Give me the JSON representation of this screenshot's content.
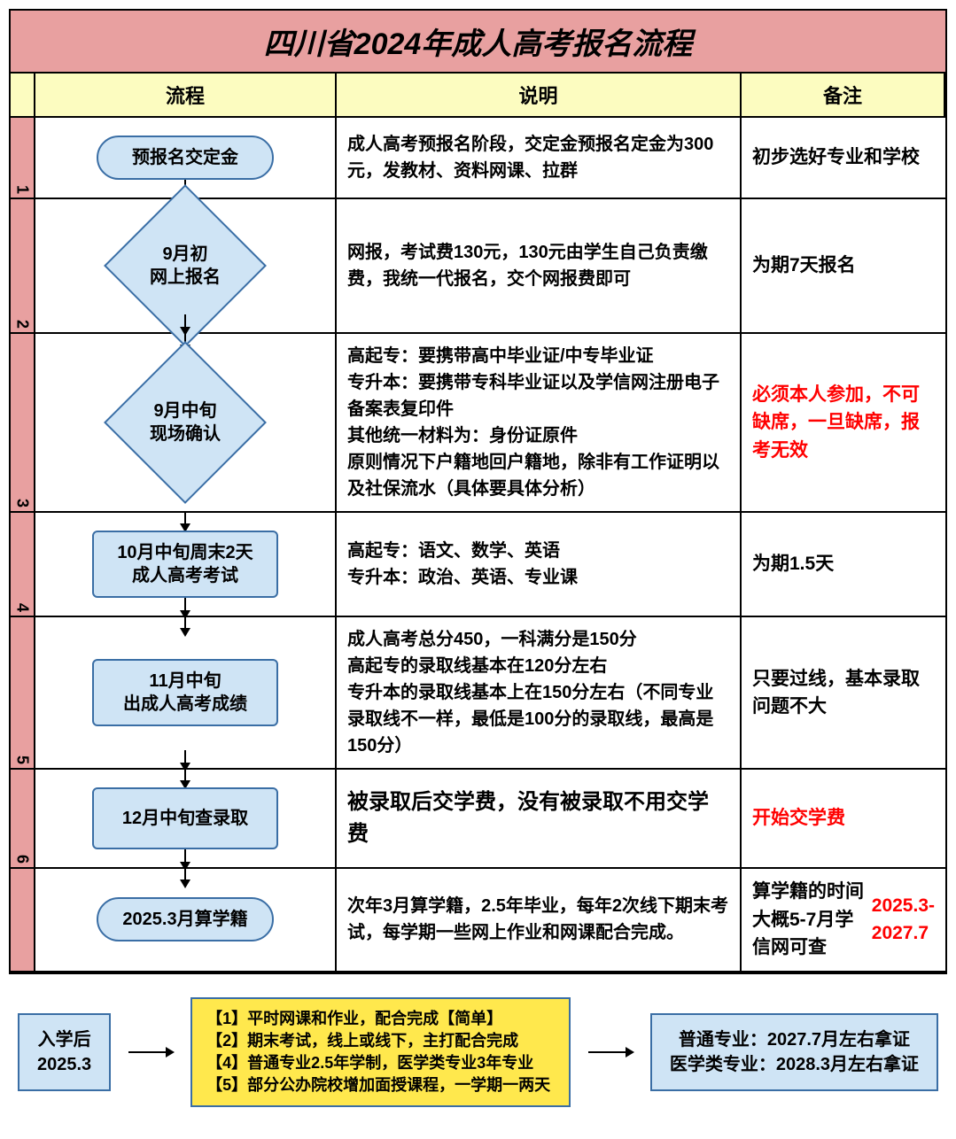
{
  "title": "四川省2024年成人高考报名流程",
  "headers": {
    "flow": "流程",
    "desc": "说明",
    "note": "备注"
  },
  "rows": [
    {
      "num": "1",
      "shape": "rounded",
      "shape_text": "预报名交定金",
      "desc": "成人高考预报名阶段，交定金预报名定金为300元，发教材、资料网课、拉群",
      "note": "初步选好专业和学校",
      "arrows": "bot"
    },
    {
      "num": "2",
      "shape": "diamond",
      "shape_text": "9月初\n网上报名",
      "desc": "网报，考试费130元，130元由学生自己负责缴费，我统一代报名，交个网报费即可",
      "note": "为期7天报名",
      "arrows": "both"
    },
    {
      "num": "3",
      "shape": "diamond",
      "shape_text": "9月中旬\n现场确认",
      "desc": "高起专：要携带高中毕业证/中专毕业证\n专升本：要携带专科毕业证以及学信网注册电子备案表复印件\n其他统一材料为：身份证原件\n原则情况下户籍地回户籍地，除非有工作证明以及社保流水（具体要具体分析）",
      "note": "必须本人参加，不可缺席，一旦缺席，报考无效",
      "note_red": true,
      "arrows": "top"
    },
    {
      "num": "4",
      "shape": "rect",
      "shape_text": "10月中旬周末2天\n成人高考考试",
      "desc": "高起专：语文、数学、英语\n专升本：政治、英语、专业课",
      "note": "为期1.5天",
      "arrows": "both"
    },
    {
      "num": "5",
      "shape": "rect",
      "shape_text": "11月中旬\n出成人高考成绩",
      "desc": "成人高考总分450，一科满分是150分\n高起专的录取线基本在120分左右\n专升本的录取线基本上在150分左右（不同专业录取线不一样，最低是100分的录取线，最高是150分）",
      "note": "只要过线，基本录取问题不大",
      "arrows": "both"
    },
    {
      "num": "6",
      "shape": "rect",
      "shape_text": "12月中旬查录取",
      "desc": "被录取后交学费，没有被录取不用交学费",
      "desc_big": true,
      "note": "开始交学费",
      "note_red": true,
      "arrows": "both"
    },
    {
      "num": "",
      "shape": "rounded",
      "shape_text": "2025.3月算学籍",
      "desc": "次年3月算学籍，2.5年毕业，每年2次线下期末考试，每学期一些网上作业和网课配合完成。",
      "note_html": "算学籍的时间大概5-7月学信网可查<br><span class='red'>2025.3-2027.7</span>",
      "arrows": "top"
    }
  ],
  "bottom": {
    "left": "入学后\n2025.3",
    "mid": "【1】平时网课和作业，配合完成【简单】\n【2】期末考试，线上或线下，主打配合完成\n【4】普通专业2.5年学制，医学类专业3年专业\n【5】部分公办院校增加面授课程，一学期一两天",
    "right": "普通专业：2027.7月左右拿证\n医学类专业：2028.3月左右拿证"
  },
  "colors": {
    "title_bg": "#e8a0a0",
    "header_bg": "#fcfcc0",
    "shape_fill": "#cfe4f5",
    "shape_border": "#3a6ea5",
    "yellow": "#ffe84d",
    "red": "#ff0000"
  }
}
